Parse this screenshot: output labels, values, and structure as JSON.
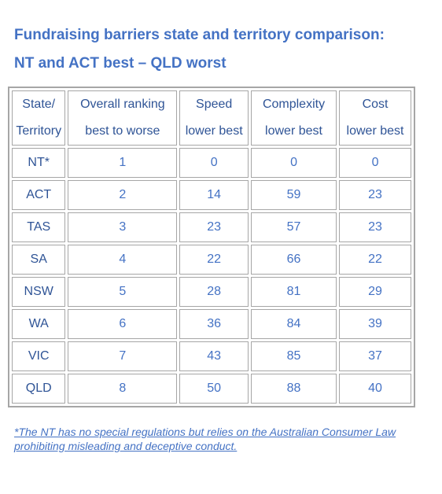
{
  "title": "Fundraising barriers state and territory comparison:",
  "subtitle": "NT and ACT best – QLD worst",
  "table": {
    "headers": [
      {
        "line1": "State/",
        "line2": "Territory"
      },
      {
        "line1": "Overall ranking",
        "line2": "best to worse"
      },
      {
        "line1": "Speed",
        "line2": "lower best"
      },
      {
        "line1": "Complexity",
        "line2": "lower best"
      },
      {
        "line1": "Cost",
        "line2": "lower best"
      }
    ],
    "rows": [
      {
        "state": "NT*",
        "rank": "1",
        "speed": "0",
        "complexity": "0",
        "cost": "0"
      },
      {
        "state": "ACT",
        "rank": "2",
        "speed": "14",
        "complexity": "59",
        "cost": "23"
      },
      {
        "state": "TAS",
        "rank": "3",
        "speed": "23",
        "complexity": "57",
        "cost": "23"
      },
      {
        "state": "SA",
        "rank": "4",
        "speed": "22",
        "complexity": "66",
        "cost": "22"
      },
      {
        "state": "NSW",
        "rank": "5",
        "speed": "28",
        "complexity": "81",
        "cost": "29"
      },
      {
        "state": "WA",
        "rank": "6",
        "speed": "36",
        "complexity": "84",
        "cost": "39"
      },
      {
        "state": "VIC",
        "rank": "7",
        "speed": "43",
        "complexity": "85",
        "cost": "37"
      },
      {
        "state": "QLD",
        "rank": "8",
        "speed": "50",
        "complexity": "88",
        "cost": "40"
      }
    ]
  },
  "footnote": "*The NT has no special regulations but relies on the Australian Consumer Law prohibiting misleading and deceptive conduct.",
  "colors": {
    "heading": "#4472c4",
    "text": "#4472c4",
    "border": "#a6a6a6"
  }
}
